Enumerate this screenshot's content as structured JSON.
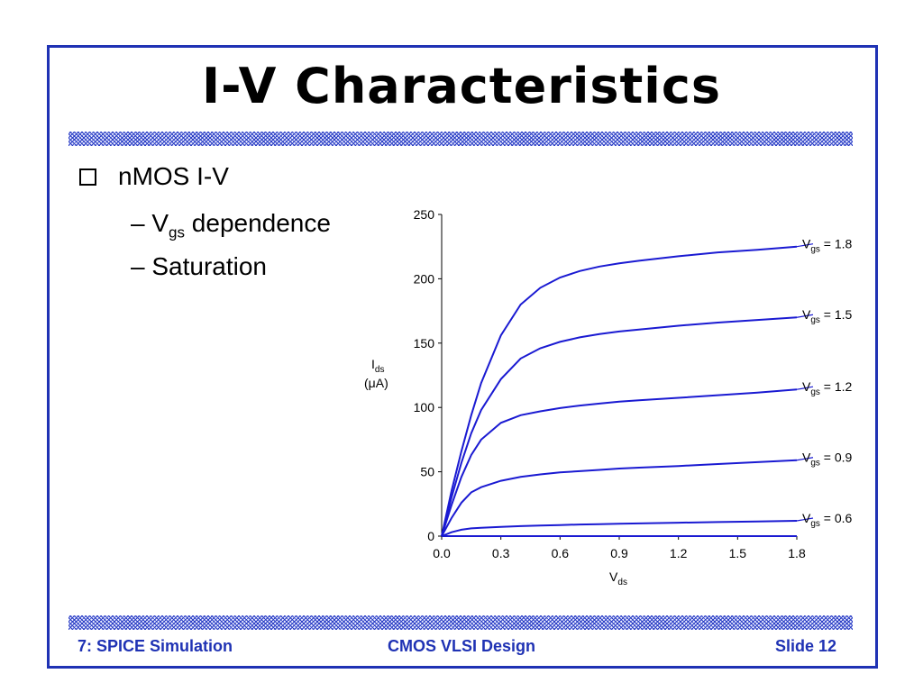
{
  "slide": {
    "title": "I-V Characteristics",
    "bullet": "nMOS I-V",
    "sub1_main": "V",
    "sub1_sub": "gs",
    "sub1_rest": " dependence",
    "sub2": "Saturation"
  },
  "footer": {
    "left": "7: SPICE Simulation",
    "center": "CMOS VLSI Design",
    "right": "Slide 12"
  },
  "colors": {
    "accent": "#1f32b4",
    "curve": "#1a1ad2"
  },
  "chart_data": {
    "type": "line",
    "x_tick_labels": [
      "0.0",
      "0.3",
      "0.6",
      "0.9",
      "1.2",
      "1.5",
      "1.8"
    ],
    "y_tick_labels": [
      "0",
      "50",
      "100",
      "150",
      "200",
      "250"
    ],
    "xlim": [
      0,
      1.8
    ],
    "ylim": [
      0,
      250
    ],
    "xlabel_main": "V",
    "xlabel_sub": "ds",
    "ylabel_main": "I",
    "ylabel_sub": "ds",
    "ylabel_unit": "(μA)",
    "x": [
      0,
      0.05,
      0.1,
      0.15,
      0.2,
      0.3,
      0.4,
      0.5,
      0.6,
      0.7,
      0.8,
      0.9,
      1.0,
      1.2,
      1.4,
      1.6,
      1.8
    ],
    "series": [
      {
        "label_main": "V",
        "label_sub": "gs",
        "label_rest": " = 0.6",
        "values": [
          0,
          3,
          5,
          6,
          6.5,
          7.2,
          7.8,
          8.2,
          8.6,
          9,
          9.3,
          9.6,
          9.9,
          10.4,
          10.9,
          11.4,
          11.9
        ]
      },
      {
        "label_main": "V",
        "label_sub": "gs",
        "label_rest": " = 0.9",
        "values": [
          0,
          14,
          26,
          34,
          38,
          43,
          46,
          48,
          49.5,
          50.5,
          51.5,
          52.5,
          53.2,
          54.5,
          56,
          57.5,
          59
        ]
      },
      {
        "label_main": "V",
        "label_sub": "gs",
        "label_rest": " = 1.2",
        "values": [
          0,
          24,
          46,
          63,
          75,
          88,
          94,
          97,
          99.5,
          101.5,
          103,
          104.5,
          105.5,
          107.5,
          109.5,
          111.5,
          114
        ]
      },
      {
        "label_main": "V",
        "label_sub": "gs",
        "label_rest": " = 1.5",
        "values": [
          0,
          30,
          57,
          80,
          98,
          122,
          138,
          146,
          151,
          154.5,
          157,
          159,
          160.5,
          163.5,
          166,
          168,
          170
        ]
      },
      {
        "label_main": "V",
        "label_sub": "gs",
        "label_rest": " = 1.8",
        "values": [
          0,
          35,
          66,
          94,
          119,
          156,
          180,
          193,
          201,
          206,
          209.5,
          212,
          214,
          217.5,
          220.5,
          222.5,
          225
        ]
      }
    ],
    "grid": false
  }
}
